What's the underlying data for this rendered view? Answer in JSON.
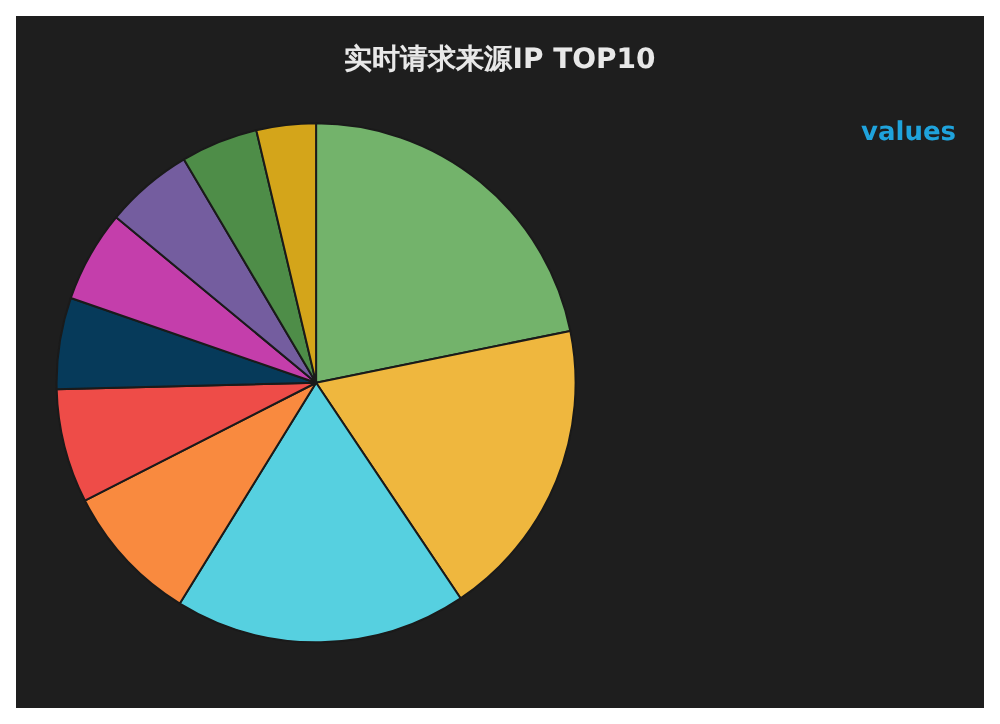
{
  "chart_data": {
    "type": "pie",
    "title": "实时请求来源IP TOP10",
    "categories": [
      null,
      null,
      null,
      null,
      null,
      null,
      null,
      null,
      null,
      null
    ],
    "values": [
      21.8,
      18.8,
      18.2,
      8.7,
      7.1,
      5.7,
      5.7,
      5.5,
      4.8,
      3.7
    ],
    "colors": [
      "#73b36b",
      "#efb73e",
      "#56d0e0",
      "#f98a3f",
      "#ee4c48",
      "#063a5a",
      "#c43eab",
      "#745d9f",
      "#4e8d48",
      "#d4a51a"
    ],
    "annotations": [
      "values"
    ]
  }
}
